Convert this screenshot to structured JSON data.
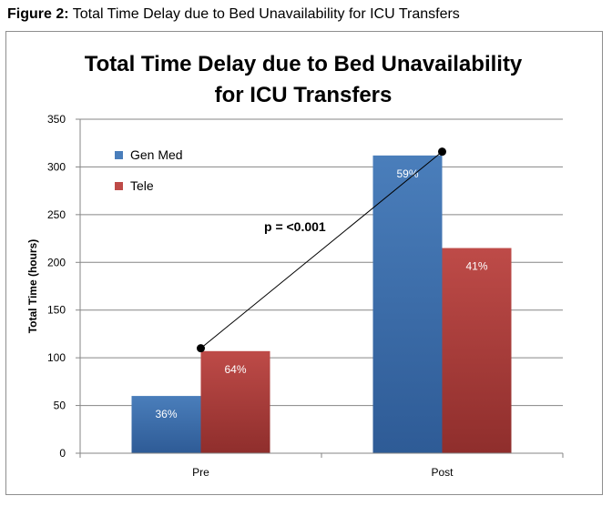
{
  "caption": {
    "label": "Figure 2:",
    "text": "Total Time Delay due to Bed Unavailability for ICU Transfers"
  },
  "chart_data": {
    "type": "bar",
    "title_lines": [
      "Total Time Delay due to Bed Unavailability",
      "for ICU Transfers"
    ],
    "xlabel": "",
    "ylabel": "Total Time (hours)",
    "categories": [
      "Pre",
      "Post"
    ],
    "ylim": [
      0,
      350
    ],
    "yticks": [
      0,
      50,
      100,
      150,
      200,
      250,
      300,
      350
    ],
    "grid": true,
    "legend_position": "top-left",
    "series": [
      {
        "name": "Gen Med",
        "values": [
          60,
          312
        ],
        "labels": [
          "36%",
          "59%"
        ],
        "color": "#4a7ebb",
        "color_dark": "#2e5b96"
      },
      {
        "name": "Tele",
        "values": [
          107,
          215
        ],
        "labels": [
          "64%",
          "41%"
        ],
        "color": "#be4b48",
        "color_dark": "#8f2e2c"
      }
    ],
    "trend_line": {
      "from": {
        "category": "Pre",
        "value": 110
      },
      "to": {
        "category": "Post",
        "value": 316
      }
    },
    "annotation": "p = <0.001"
  }
}
